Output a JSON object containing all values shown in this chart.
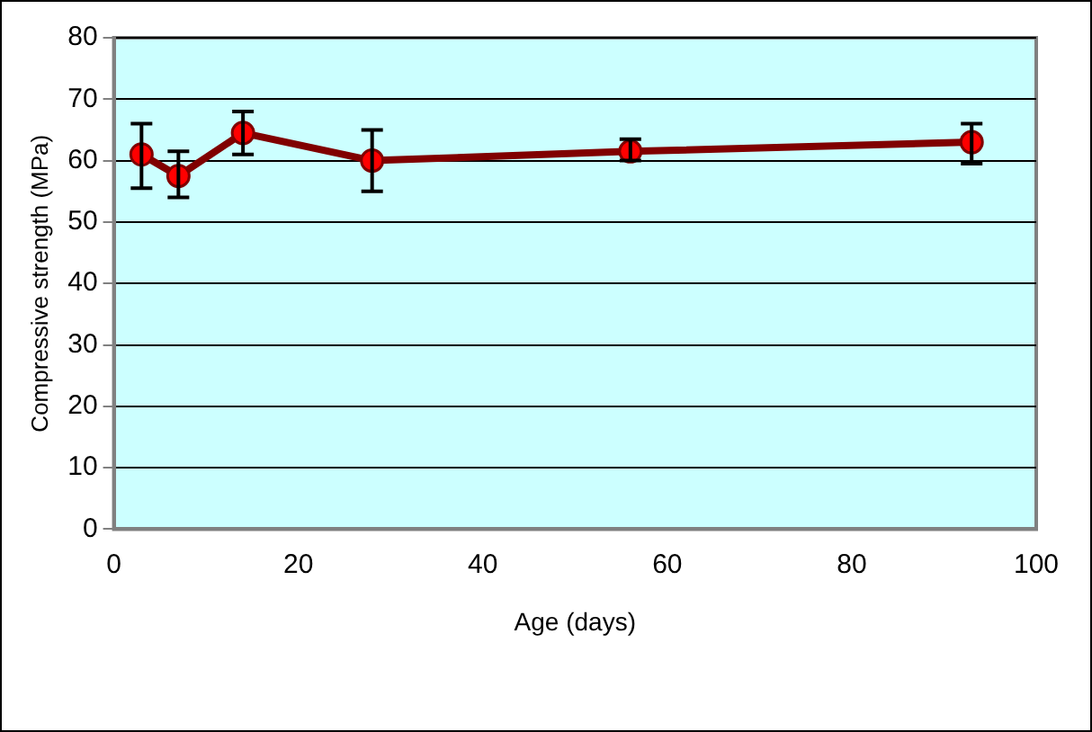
{
  "chart_data": {
    "type": "line",
    "xlabel": "Age (days)",
    "ylabel": "Compressive strength (MPa)",
    "x": [
      3,
      7,
      14,
      28,
      56,
      93
    ],
    "series": [
      {
        "color": "#800000",
        "values": [
          61,
          57.5,
          64.5,
          60,
          61.5,
          63
        ],
        "errors": [
          [
            55.5,
            66
          ],
          [
            54,
            61.5
          ],
          [
            61,
            68
          ],
          [
            55,
            65
          ],
          [
            60,
            63.5
          ],
          [
            59.5,
            66
          ]
        ]
      }
    ],
    "xlim": [
      0,
      100
    ],
    "xticks": [
      0,
      20,
      40,
      60,
      80,
      100
    ],
    "ylim": [
      0,
      80
    ],
    "yticks": [
      0,
      10,
      20,
      30,
      40,
      50,
      60,
      70,
      80
    ],
    "grid": "y",
    "legend": false,
    "marker": "circle",
    "line_style": "solid"
  }
}
